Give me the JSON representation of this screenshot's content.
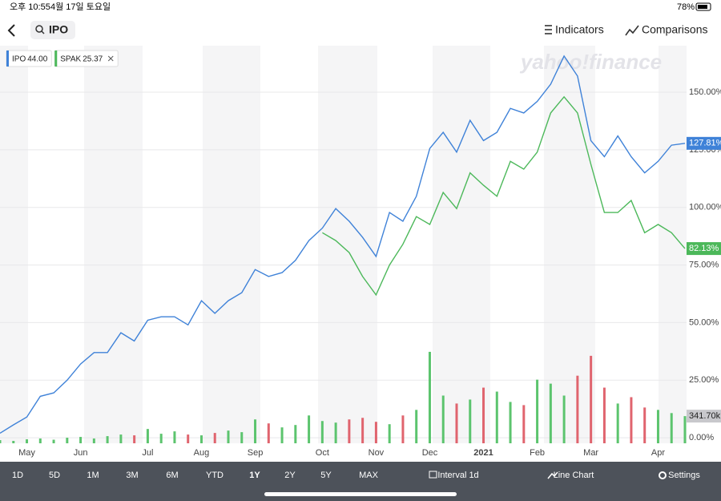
{
  "status_bar": {
    "time": "오후 10:55",
    "date": "4월 17일 토요일",
    "battery": "78%"
  },
  "header": {
    "search": "IPO",
    "indicators": "Indicators",
    "comparisons": "Comparisons"
  },
  "watermark": "yahoo!finance",
  "chart_data": {
    "type": "line",
    "categories": [
      null,
      null,
      "May",
      null,
      null,
      null,
      "Jun",
      null,
      null,
      null,
      null,
      "Jul",
      null,
      null,
      null,
      "Aug",
      null,
      null,
      null,
      "Sep",
      null,
      null,
      null,
      null,
      "Oct",
      null,
      null,
      null,
      "Nov",
      null,
      null,
      null,
      "Dec",
      null,
      null,
      null,
      "2021",
      null,
      null,
      null,
      "Feb",
      null,
      null,
      null,
      "Mar",
      null,
      null,
      null,
      null,
      "Apr",
      null,
      null
    ],
    "series": [
      {
        "name": "IPO",
        "price": "44.00",
        "color": "#3f82d8",
        "last_label": "127.81%",
        "values": [
          2,
          5.6,
          9,
          18,
          19.5,
          25,
          32,
          37,
          37,
          45.6,
          42,
          51,
          52.5,
          52.5,
          49,
          59.5,
          54,
          59.5,
          63,
          73,
          70,
          71.7,
          77,
          85.6,
          91,
          99.5,
          94,
          87,
          78.7,
          97.8,
          94,
          104.8,
          125.6,
          132.6,
          124,
          137.8,
          129,
          132.6,
          143,
          141,
          146,
          153.5,
          165.7,
          157,
          129,
          122,
          131,
          122,
          115,
          120,
          127,
          127.81
        ]
      },
      {
        "name": "SPAK",
        "price": "25.37",
        "color": "#4cb85a",
        "last_label": "82.13%",
        "values": [
          null,
          null,
          null,
          null,
          null,
          null,
          null,
          null,
          null,
          null,
          null,
          null,
          null,
          null,
          null,
          null,
          null,
          null,
          null,
          null,
          null,
          null,
          null,
          null,
          89,
          85.6,
          80.4,
          70,
          62,
          75,
          84,
          96,
          92.6,
          106.5,
          99.5,
          115,
          109.6,
          104.8,
          120,
          116.6,
          124,
          141,
          148,
          141,
          118.7,
          97.8,
          97.8,
          103,
          89,
          92.6,
          89,
          82.13
        ]
      },
      {
        "name": "Volume",
        "axis": "y2",
        "up_color": "#5cc46e",
        "down_color": "#e0646e",
        "last_label": "341.70k",
        "values": [
          40000,
          30000,
          50000,
          60000,
          45000,
          70000,
          80000,
          60000,
          90000,
          110000,
          100000,
          180000,
          120000,
          150000,
          110000,
          100000,
          130000,
          160000,
          140000,
          300000,
          250000,
          200000,
          230000,
          350000,
          280000,
          260000,
          300000,
          320000,
          270000,
          240000,
          350000,
          420000,
          1150000,
          600000,
          500000,
          550000,
          700000,
          650000,
          520000,
          480000,
          800000,
          750000,
          600000,
          850000,
          1100000,
          700000,
          500000,
          580000,
          450000,
          420000,
          380000,
          341700
        ]
      }
    ],
    "ylim": [
      -2.4,
      170.2
    ],
    "yticks": [
      {
        "value": 0,
        "label": "0.00%"
      },
      {
        "value": 25,
        "label": "25.00%"
      },
      {
        "value": 50,
        "label": "50.00%"
      },
      {
        "value": 75,
        "label": "75.00%"
      },
      {
        "value": 100,
        "label": "100.00%"
      },
      {
        "value": 125,
        "label": "125.00%"
      },
      {
        "value": 150,
        "label": "150.00%"
      }
    ],
    "y2lim": [
      0,
      5000000
    ],
    "grid": true
  },
  "toolbar": {
    "ranges": [
      "1D",
      "5D",
      "1M",
      "3M",
      "6M",
      "YTD",
      "1Y",
      "2Y",
      "5Y",
      "MAX"
    ],
    "active_index": 6,
    "interval": "Interval 1d",
    "chart_type": "Line Chart",
    "settings": "Settings"
  }
}
